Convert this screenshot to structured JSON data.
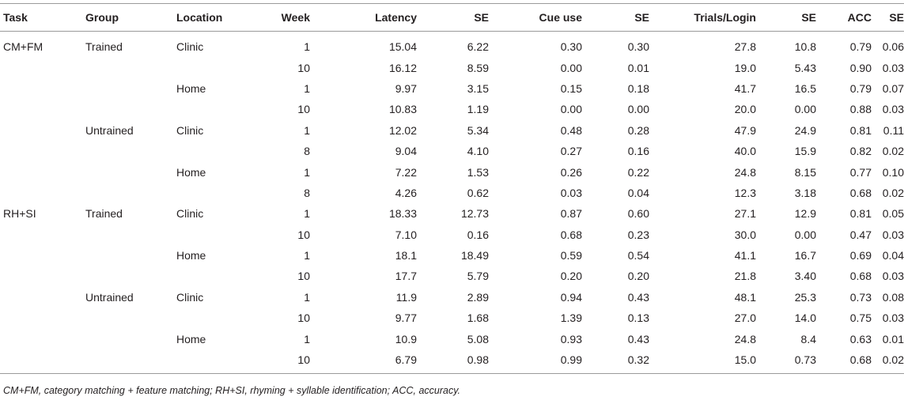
{
  "headers": [
    "Task",
    "Group",
    "Location",
    "Week",
    "Latency",
    "SE",
    "Cue use",
    "SE",
    "Trials/Login",
    "SE",
    "ACC",
    "SE"
  ],
  "rows": [
    [
      "CM+FM",
      "Trained",
      "Clinic",
      "1",
      "15.04",
      "6.22",
      "0.30",
      "0.30",
      "27.8",
      "10.8",
      "0.79",
      "0.06"
    ],
    [
      "",
      "",
      "",
      "10",
      "16.12",
      "8.59",
      "0.00",
      "0.01",
      "19.0",
      "5.43",
      "0.90",
      "0.03"
    ],
    [
      "",
      "",
      "Home",
      "1",
      "9.97",
      "3.15",
      "0.15",
      "0.18",
      "41.7",
      "16.5",
      "0.79",
      "0.07"
    ],
    [
      "",
      "",
      "",
      "10",
      "10.83",
      "1.19",
      "0.00",
      "0.00",
      "20.0",
      "0.00",
      "0.88",
      "0.03"
    ],
    [
      "",
      "Untrained",
      "Clinic",
      "1",
      "12.02",
      "5.34",
      "0.48",
      "0.28",
      "47.9",
      "24.9",
      "0.81",
      "0.11"
    ],
    [
      "",
      "",
      "",
      "8",
      "9.04",
      "4.10",
      "0.27",
      "0.16",
      "40.0",
      "15.9",
      "0.82",
      "0.02"
    ],
    [
      "",
      "",
      "Home",
      "1",
      "7.22",
      "1.53",
      "0.26",
      "0.22",
      "24.8",
      "8.15",
      "0.77",
      "0.10"
    ],
    [
      "",
      "",
      "",
      "8",
      "4.26",
      "0.62",
      "0.03",
      "0.04",
      "12.3",
      "3.18",
      "0.68",
      "0.02"
    ],
    [
      "RH+SI",
      "Trained",
      "Clinic",
      "1",
      "18.33",
      "12.73",
      "0.87",
      "0.60",
      "27.1",
      "12.9",
      "0.81",
      "0.05"
    ],
    [
      "",
      "",
      "",
      "10",
      "7.10",
      "0.16",
      "0.68",
      "0.23",
      "30.0",
      "0.00",
      "0.47",
      "0.03"
    ],
    [
      "",
      "",
      "Home",
      "1",
      "18.1",
      "18.49",
      "0.59",
      "0.54",
      "41.1",
      "16.7",
      "0.69",
      "0.04"
    ],
    [
      "",
      "",
      "",
      "10",
      "17.7",
      "5.79",
      "0.20",
      "0.20",
      "21.8",
      "3.40",
      "0.68",
      "0.03"
    ],
    [
      "",
      "Untrained",
      "Clinic",
      "1",
      "11.9",
      "2.89",
      "0.94",
      "0.43",
      "48.1",
      "25.3",
      "0.73",
      "0.08"
    ],
    [
      "",
      "",
      "",
      "10",
      "9.77",
      "1.68",
      "1.39",
      "0.13",
      "27.0",
      "14.0",
      "0.75",
      "0.03"
    ],
    [
      "",
      "",
      "Home",
      "1",
      "10.9",
      "5.08",
      "0.93",
      "0.43",
      "24.8",
      "8.4",
      "0.63",
      "0.01"
    ],
    [
      "",
      "",
      "",
      "10",
      "6.79",
      "0.98",
      "0.99",
      "0.32",
      "15.0",
      "0.73",
      "0.68",
      "0.02"
    ]
  ],
  "footnote": "CM+FM, category matching + feature matching; RH+SI, rhyming + syllable identification; ACC, accuracy."
}
